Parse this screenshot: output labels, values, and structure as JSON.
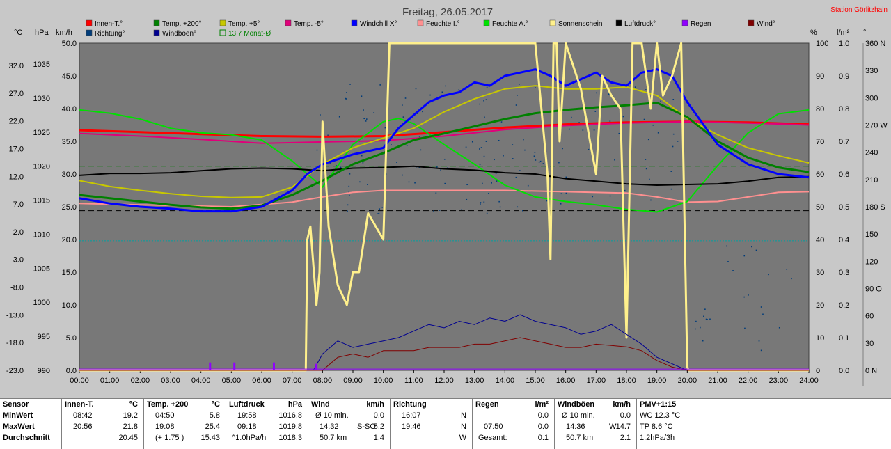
{
  "header": {
    "title": "Freitag, 26.05.2017",
    "station": "Station Görlitzhain"
  },
  "legend": [
    {
      "label": "Innen-T.°",
      "color": "#ff0000"
    },
    {
      "label": "Temp. +200°",
      "color": "#008000"
    },
    {
      "label": "Temp. +5°",
      "color": "#c8c800"
    },
    {
      "label": "Temp. -5°",
      "color": "#e0007a"
    },
    {
      "label": "Windchill X°",
      "color": "#0000ff"
    },
    {
      "label": "Feuchte I.°",
      "color": "#ff9090"
    },
    {
      "label": "Feuchte A.°",
      "color": "#00e000"
    },
    {
      "label": "Sonnenschein",
      "color": "#fff08c"
    },
    {
      "label": "Luftdruck°",
      "color": "#000000"
    },
    {
      "label": "Regen",
      "color": "#9000ff"
    },
    {
      "label": "Wind°",
      "color": "#800000"
    },
    {
      "label": "Richtung°",
      "color": "#003c7a"
    },
    {
      "label": "Windböen°",
      "color": "#000090"
    },
    {
      "label": "13.7 Monat-Ø",
      "color": "#008000"
    }
  ],
  "unit_labels": {
    "celsius": "°C",
    "hpa": "hPa",
    "kmh": "km/h",
    "percent": "%",
    "rain": "l/m²",
    "deg": "°"
  },
  "chart_data": {
    "type": "line",
    "x_ticks": [
      "00:00",
      "01:00",
      "02:00",
      "03:00",
      "04:00",
      "05:00",
      "06:00",
      "07:00",
      "08:00",
      "09:00",
      "10:00",
      "11:00",
      "12:00",
      "13:00",
      "14:00",
      "15:00",
      "16:00",
      "17:00",
      "18:00",
      "19:00",
      "20:00",
      "21:00",
      "22:00",
      "23:00",
      "24:00"
    ],
    "xlim": [
      0,
      24
    ],
    "ylim_kmh": [
      0,
      50
    ],
    "axes": {
      "celsius_ticks": [
        "32.0",
        "27.0",
        "22.0",
        "17.0",
        "12.0",
        "7.0",
        "2.0",
        "-3.0",
        "-8.0",
        "-13.0",
        "-18.0",
        "-23.0"
      ],
      "hpa_ticks": [
        "1035",
        "1030",
        "1025",
        "1020",
        "1015",
        "1010",
        "1005",
        "1000",
        "995",
        "990"
      ],
      "kmh_ticks": [
        "50.0",
        "45.0",
        "40.0",
        "35.0",
        "30.0",
        "25.0",
        "20.0",
        "15.0",
        "10.0",
        "5.0",
        "0.0"
      ],
      "percent_ticks": [
        "100",
        "90",
        "80",
        "70",
        "60",
        "50",
        "40",
        "30",
        "20",
        "10",
        "0"
      ],
      "rain_ticks": [
        "1.0",
        "0.9",
        "0.8",
        "0.7",
        "0.6",
        "0.5",
        "0.4",
        "0.3",
        "0.2",
        "0.1",
        "0.0"
      ],
      "deg_ticks": [
        "360 N",
        "330",
        "300",
        "270 W",
        "240",
        "210",
        "180 S",
        "150",
        "120",
        "90 O",
        "60",
        "30",
        "0 N"
      ]
    },
    "reference_lines": [
      {
        "name": "13.7 Monat-Ø",
        "y": 31.2,
        "color": "#008000",
        "style": "dashed"
      },
      {
        "name": "zero",
        "y": 24.4,
        "color": "#000000",
        "style": "dashed"
      },
      {
        "name": "teal",
        "y": 19.8,
        "color": "#00a0a0",
        "style": "dotted"
      }
    ],
    "series": [
      {
        "name": "Innen-T.°",
        "color": "#ff0000",
        "width": 3,
        "x": [
          0,
          2,
          4,
          6,
          8,
          10,
          12,
          14,
          16,
          18,
          20,
          22,
          24
        ],
        "y": [
          36.7,
          36.4,
          36.1,
          35.8,
          35.7,
          35.8,
          36.4,
          37.1,
          37.6,
          37.9,
          38.0,
          37.9,
          37.6
        ]
      },
      {
        "name": "Temp. -5°",
        "color": "#e0007a",
        "width": 2,
        "x": [
          0,
          2,
          4,
          6,
          8,
          10,
          12,
          14,
          16,
          18,
          20,
          22,
          24
        ],
        "y": [
          36.2,
          35.8,
          35.3,
          34.7,
          34.9,
          35.1,
          35.8,
          36.8,
          37.4,
          37.8,
          38.0,
          37.8,
          37.5
        ]
      },
      {
        "name": "Feuchte I.°",
        "color": "#ff9090",
        "width": 2,
        "x": [
          0,
          3,
          5,
          7,
          8,
          9,
          10,
          12,
          14,
          16,
          18,
          19,
          20,
          21,
          22,
          23,
          24
        ],
        "y": [
          25.5,
          25.2,
          25.0,
          25.7,
          26.5,
          27.2,
          27.5,
          27.5,
          27.5,
          27.3,
          27.1,
          26.5,
          25.7,
          25.8,
          26.5,
          27.2,
          27.3
        ]
      },
      {
        "name": "Feuchte A.°",
        "color": "#00e000",
        "width": 2,
        "x": [
          0,
          1,
          2,
          3,
          4,
          5,
          6,
          7,
          8,
          9,
          10,
          10.5,
          11,
          12,
          13,
          14,
          15,
          16,
          17,
          18,
          19,
          20,
          21,
          22,
          23,
          24
        ],
        "y": [
          39.8,
          39.3,
          38.4,
          37.0,
          36.3,
          36.0,
          35.2,
          32.0,
          28.0,
          34.5,
          38.0,
          38.5,
          37.7,
          34.5,
          31.5,
          28.3,
          26.5,
          25.8,
          25.3,
          24.6,
          24.2,
          25.8,
          31.3,
          36.3,
          39.2,
          39.8
        ]
      },
      {
        "name": "Luftdruck°",
        "color": "#000000",
        "width": 2,
        "x": [
          0,
          1,
          2,
          3,
          4,
          5,
          6,
          7,
          8,
          9,
          10,
          11,
          12,
          13,
          14,
          15,
          16,
          17,
          18,
          19,
          20,
          21,
          22,
          23,
          24
        ],
        "y": [
          29.8,
          30.1,
          30.1,
          30.2,
          30.5,
          30.8,
          30.9,
          30.8,
          30.5,
          30.9,
          31.0,
          31.2,
          30.8,
          30.6,
          30.2,
          30.0,
          29.3,
          28.9,
          28.5,
          28.3,
          28.4,
          28.5,
          28.9,
          29.5,
          29.6
        ]
      },
      {
        "name": "Temp. +5°",
        "color": "#c8c800",
        "width": 2,
        "x": [
          0,
          1,
          2,
          3,
          4,
          5,
          6,
          7,
          8,
          9,
          10,
          11,
          12,
          13,
          14,
          15,
          16,
          17,
          18,
          19,
          20,
          21,
          22,
          23,
          24
        ],
        "y": [
          29.0,
          28.1,
          27.5,
          27.0,
          26.6,
          26.4,
          26.5,
          28.0,
          31.5,
          34.0,
          35.5,
          37.0,
          39.5,
          41.5,
          43.0,
          43.5,
          43.0,
          43.0,
          43.3,
          42.0,
          38.5,
          36.0,
          34.0,
          32.8,
          31.7
        ]
      },
      {
        "name": "Temp. +200°",
        "color": "#008000",
        "width": 3,
        "x": [
          0,
          1,
          2,
          3,
          4,
          5,
          6,
          7,
          8,
          9,
          10,
          11,
          12,
          13,
          14,
          15,
          16,
          17,
          18,
          19,
          20,
          21,
          22,
          23,
          24
        ],
        "y": [
          26.8,
          26.3,
          25.8,
          25.3,
          24.9,
          24.7,
          25.2,
          26.8,
          29.0,
          31.5,
          33.2,
          35.2,
          36.2,
          37.3,
          38.4,
          39.3,
          39.8,
          40.2,
          40.5,
          40.9,
          38.7,
          35.0,
          32.5,
          31.0,
          30.3
        ]
      },
      {
        "name": "Windchill X°",
        "color": "#0000ff",
        "width": 3,
        "x": [
          0,
          1,
          2,
          3,
          4,
          5,
          6,
          7,
          7.5,
          8,
          9,
          10,
          10.5,
          11,
          11.5,
          12,
          12.5,
          13,
          13.5,
          14,
          14.5,
          15,
          15.5,
          16,
          16.5,
          17,
          17.5,
          18,
          18.5,
          19,
          19.5,
          20,
          21,
          22,
          23,
          24
        ],
        "y": [
          26.3,
          25.5,
          25.0,
          24.7,
          24.3,
          24.3,
          25.0,
          27.5,
          30.0,
          31.5,
          33.0,
          34.0,
          37.0,
          39.0,
          41.0,
          42.0,
          42.5,
          44.0,
          43.5,
          45.0,
          45.5,
          46.0,
          45.0,
          43.5,
          44.5,
          45.5,
          44.0,
          43.5,
          45.5,
          46.0,
          45.0,
          41.0,
          34.5,
          31.5,
          30.0,
          29.5
        ]
      },
      {
        "name": "Sonnenschein",
        "color": "#fff08c",
        "width": 3,
        "x": [
          0,
          7.45,
          7.5,
          7.6,
          7.8,
          7.9,
          8.0,
          8.2,
          8.5,
          8.8,
          9.0,
          9.2,
          9.5,
          10.0,
          10.2,
          10.3,
          10.5,
          11.0,
          11.5,
          12.0,
          13.0,
          14.0,
          15.0,
          15.4,
          15.5,
          15.6,
          15.7,
          15.8,
          16.0,
          16.5,
          16.8,
          17.0,
          17.2,
          17.5,
          17.8,
          18.0,
          18.2,
          18.5,
          18.8,
          19.0,
          19.2,
          19.5,
          19.8,
          20.0,
          20.05,
          20.1,
          24
        ],
        "y": [
          0,
          0,
          20,
          22,
          10,
          15,
          38,
          22,
          13,
          10,
          15,
          15,
          24,
          20,
          50,
          50,
          50,
          50,
          50,
          50,
          50,
          50,
          50,
          30,
          17,
          50,
          50,
          35,
          50,
          43,
          35,
          30,
          45,
          42,
          40,
          5,
          50,
          50,
          40,
          50,
          42,
          45,
          50,
          0.5,
          0,
          0,
          0
        ]
      },
      {
        "name": "Windböen°",
        "color": "#000090",
        "width": 1,
        "x": [
          0,
          7.7,
          8,
          8.5,
          9,
          9.5,
          10,
          10.5,
          11,
          11.5,
          12,
          12.5,
          13,
          13.5,
          14,
          14.5,
          15,
          15.5,
          16,
          16.5,
          17,
          17.5,
          18,
          18.5,
          19,
          19.5,
          20,
          24
        ],
        "y": [
          0,
          0,
          2.5,
          4.5,
          3.5,
          4.0,
          4.5,
          5.0,
          6.0,
          7.0,
          6.5,
          7.5,
          7.0,
          8.0,
          7.5,
          8.5,
          7.5,
          7.0,
          6.5,
          5.5,
          6.0,
          7.0,
          5.5,
          4.0,
          2.0,
          1.0,
          0,
          0
        ]
      },
      {
        "name": "Wind°",
        "color": "#800000",
        "width": 1,
        "x": [
          0,
          8,
          8.5,
          9,
          9.5,
          10,
          10.5,
          11,
          11.5,
          12,
          12.5,
          13,
          13.5,
          14,
          14.5,
          15,
          15.5,
          16,
          16.5,
          17,
          17.5,
          18,
          18.5,
          19,
          19.5,
          20,
          24
        ],
        "y": [
          0,
          0,
          2.0,
          2.5,
          2.0,
          3.0,
          3.0,
          3.0,
          3.5,
          3.5,
          3.5,
          4.0,
          4.0,
          4.5,
          5.0,
          4.5,
          4.0,
          3.5,
          3.5,
          4.0,
          3.8,
          3.6,
          3.0,
          1.5,
          0.5,
          0,
          0
        ]
      },
      {
        "name": "Regen",
        "color": "#9000ff",
        "width": 1,
        "x": [
          0,
          24
        ],
        "y": [
          0.2,
          0.2
        ]
      }
    ],
    "rain_bars": [
      {
        "x": 4.3,
        "y": 1.2
      },
      {
        "x": 5.1,
        "y": 1.2
      },
      {
        "x": 6.4,
        "y": 1.2
      },
      {
        "x": 7.8,
        "y": 1.0
      }
    ],
    "direction_dots_color": "#003c7a"
  },
  "stats": {
    "row_labels": {
      "title": "Sensor",
      "min": "MinWert",
      "max": "MaxWert",
      "avg": "Durchschnitt"
    },
    "innen": {
      "title": "Innen-T.",
      "unit": "°C",
      "min_time": "08:42",
      "min_val": "19.2",
      "max_time": "20:56",
      "max_val": "21.8",
      "avg_val": "20.45"
    },
    "temp": {
      "title": "Temp. +200",
      "unit": "°C",
      "min_time": "04:50",
      "min_val": "5.8",
      "max_time": "19:08",
      "max_val": "25.4",
      "avg_note": "(+ 1.75 )",
      "avg_val": "15.43"
    },
    "luft": {
      "title": "Luftdruck",
      "unit": "hPa",
      "min_time": "19:58",
      "min_val": "1016.8",
      "max_time": "09:18",
      "max_val": "1019.8",
      "avg_note": "^1.0hPa/h",
      "avg_val": "1018.3"
    },
    "wind": {
      "title": "Wind",
      "unit": "km/h",
      "min_note": "Ø 10 min.",
      "min_val": "0.0",
      "max_time": "14:32",
      "max_dir": "S-SO",
      "max_val": "5.2",
      "avg_note": "50.7 km",
      "avg_val": "1.4"
    },
    "richtung": {
      "title": "Richtung",
      "min_time": "16:07",
      "min_val": "N",
      "max_time": "19:46",
      "max_val": "N",
      "avg_val": "W"
    },
    "regen": {
      "title": "Regen",
      "unit": "l/m²",
      "min_val": "0.0",
      "max_time": "07:50",
      "max_val": "0.0",
      "avg_note": "Gesamt:",
      "avg_val": "0.1"
    },
    "boeen": {
      "title": "Windböen",
      "unit": "km/h",
      "min_note": "Ø 10 min.",
      "min_val": "0.0",
      "max_time": "14:36",
      "max_dir": "W",
      "max_val": "14.7",
      "avg_note": "50.7 km",
      "avg_val": "2.1"
    },
    "pmv": {
      "title": "PMV+1:15",
      "wc": "WC 12.3 °C",
      "tp": "TP 8.6 °C",
      "trend": "1.2hPa/3h"
    }
  }
}
